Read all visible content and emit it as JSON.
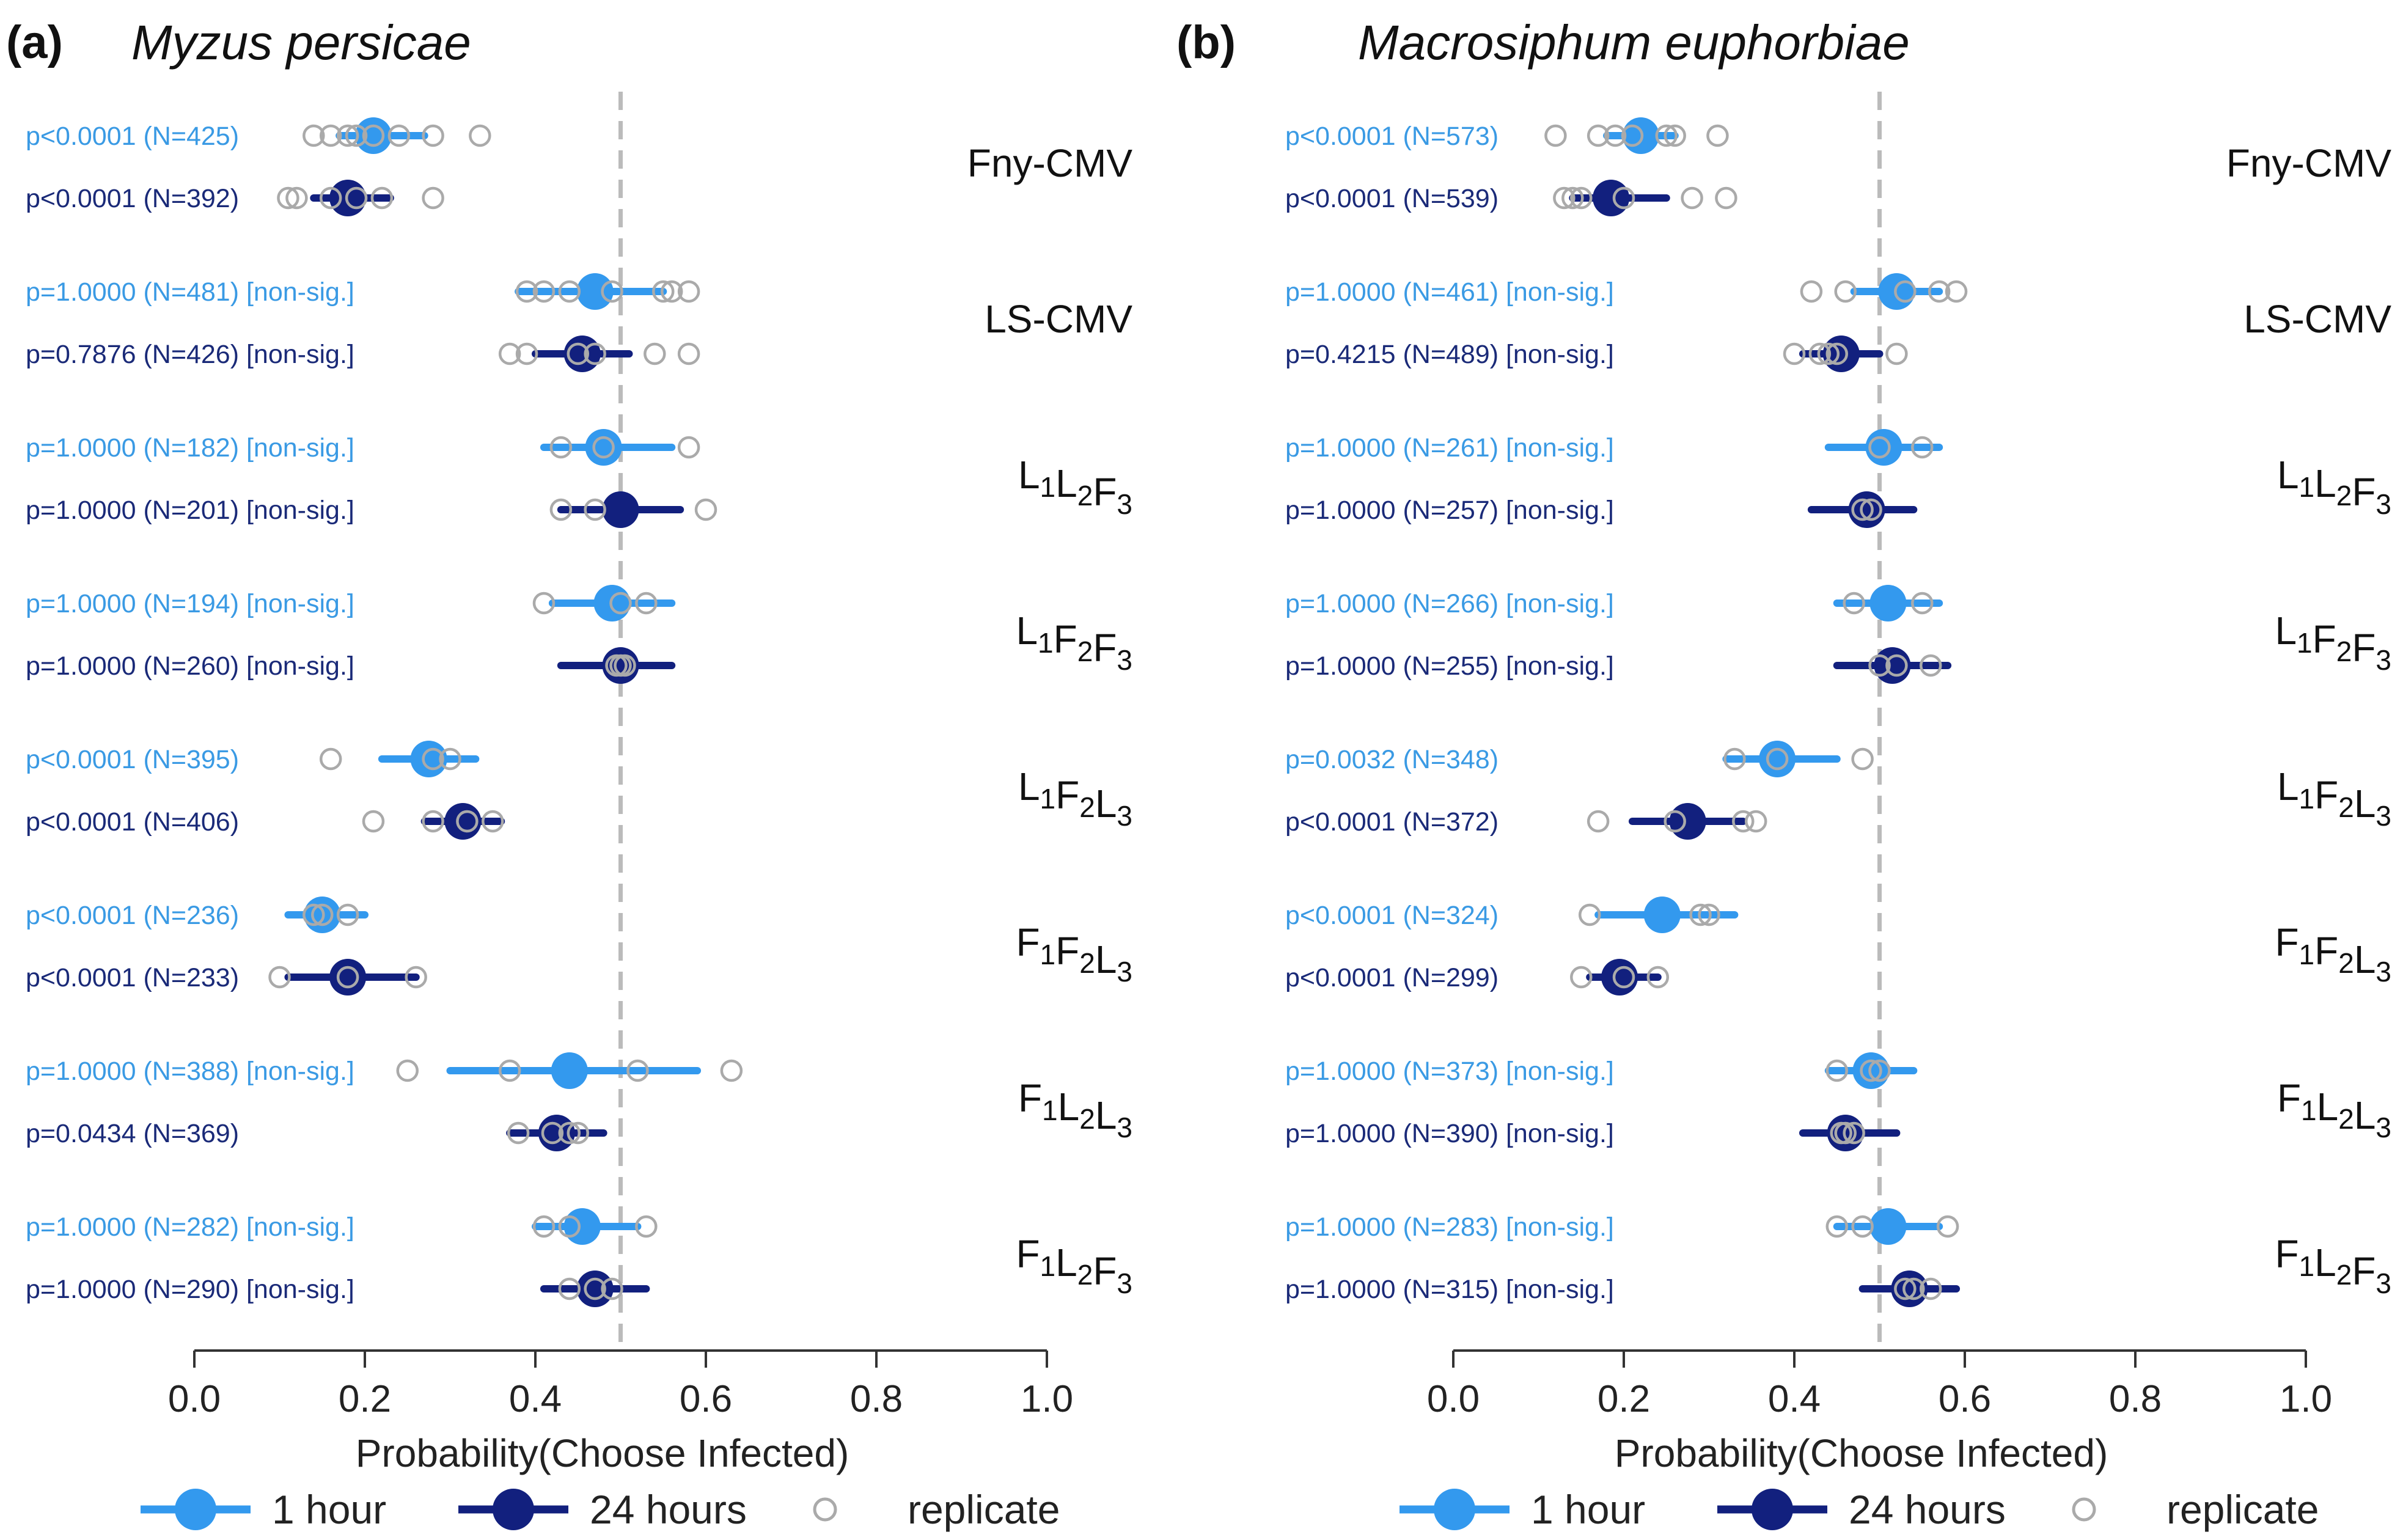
{
  "chart_data": [
    {
      "type": "scatter",
      "panel_label": "(a)",
      "title": "Myzus persicae",
      "xlabel": "Probability(Choose Infected)",
      "xlim": [
        0,
        1
      ],
      "xticks": [
        "0.0",
        "0.2",
        "0.4",
        "0.6",
        "0.8",
        "1.0"
      ],
      "reference_line": 0.5,
      "groups": [
        {
          "label": "Fny-CMV",
          "subs": [],
          "rows": [
            {
              "series": "1 hour",
              "text": "p<0.0001 (N=425)",
              "mean": 0.21,
              "lo": 0.17,
              "hi": 0.27,
              "replicates": [
                0.14,
                0.16,
                0.18,
                0.19,
                0.21,
                0.24,
                0.28,
                0.335
              ]
            },
            {
              "series": "24 hours",
              "text": "p<0.0001 (N=392)",
              "mean": 0.18,
              "lo": 0.14,
              "hi": 0.23,
              "replicates": [
                0.11,
                0.12,
                0.16,
                0.19,
                0.22,
                0.28
              ]
            }
          ]
        },
        {
          "label": "LS-CMV",
          "subs": [],
          "rows": [
            {
              "series": "1 hour",
              "text": "p=1.0000 (N=481) [non-sig.]",
              "mean": 0.47,
              "lo": 0.38,
              "hi": 0.55,
              "replicates": [
                0.39,
                0.41,
                0.44,
                0.49,
                0.55,
                0.56,
                0.58
              ]
            },
            {
              "series": "24 hours",
              "text": "p=0.7876 (N=426) [non-sig.]",
              "mean": 0.455,
              "lo": 0.4,
              "hi": 0.51,
              "replicates": [
                0.37,
                0.39,
                0.45,
                0.47,
                0.54,
                0.58
              ]
            }
          ]
        },
        {
          "label": "L1L2F3",
          "subs": [
            "1",
            "2",
            "3"
          ],
          "rows": [
            {
              "series": "1 hour",
              "text": "p=1.0000 (N=182) [non-sig.]",
              "mean": 0.48,
              "lo": 0.41,
              "hi": 0.56,
              "replicates": [
                0.43,
                0.48,
                0.58
              ]
            },
            {
              "series": "24 hours",
              "text": "p=1.0000 (N=201) [non-sig.]",
              "mean": 0.5,
              "lo": 0.43,
              "hi": 0.57,
              "replicates": [
                0.43,
                0.47,
                0.6
              ]
            }
          ]
        },
        {
          "label": "L1F2F3",
          "subs": [
            "1",
            "2",
            "3"
          ],
          "rows": [
            {
              "series": "1 hour",
              "text": "p=1.0000 (N=194) [non-sig.]",
              "mean": 0.49,
              "lo": 0.42,
              "hi": 0.56,
              "replicates": [
                0.41,
                0.5,
                0.53
              ]
            },
            {
              "series": "24 hours",
              "text": "p=1.0000 (N=260) [non-sig.]",
              "mean": 0.5,
              "lo": 0.43,
              "hi": 0.56,
              "replicates": [
                0.495,
                0.5,
                0.505
              ]
            }
          ]
        },
        {
          "label": "L1F2L3",
          "subs": [
            "1",
            "2",
            "3"
          ],
          "rows": [
            {
              "series": "1 hour",
              "text": "p<0.0001 (N=395)",
              "mean": 0.275,
              "lo": 0.22,
              "hi": 0.33,
              "replicates": [
                0.16,
                0.28,
                0.3
              ]
            },
            {
              "series": "24 hours",
              "text": "p<0.0001 (N=406)",
              "mean": 0.315,
              "lo": 0.27,
              "hi": 0.36,
              "replicates": [
                0.21,
                0.28,
                0.32,
                0.35
              ]
            }
          ]
        },
        {
          "label": "F1F2L3",
          "subs": [
            "1",
            "2",
            "3"
          ],
          "rows": [
            {
              "series": "1 hour",
              "text": "p<0.0001 (N=236)",
              "mean": 0.15,
              "lo": 0.11,
              "hi": 0.2,
              "replicates": [
                0.14,
                0.15,
                0.18
              ]
            },
            {
              "series": "24 hours",
              "text": "p<0.0001 (N=233)",
              "mean": 0.18,
              "lo": 0.11,
              "hi": 0.26,
              "replicates": [
                0.1,
                0.18,
                0.26
              ]
            }
          ]
        },
        {
          "label": "F1L2L3",
          "subs": [
            "1",
            "2",
            "3"
          ],
          "rows": [
            {
              "series": "1 hour",
              "text": "p=1.0000 (N=388) [non-sig.]",
              "mean": 0.44,
              "lo": 0.3,
              "hi": 0.59,
              "replicates": [
                0.25,
                0.37,
                0.52,
                0.63
              ]
            },
            {
              "series": "24 hours",
              "text": "p=0.0434 (N=369)",
              "mean": 0.425,
              "lo": 0.37,
              "hi": 0.48,
              "replicates": [
                0.38,
                0.42,
                0.44,
                0.45
              ]
            }
          ]
        },
        {
          "label": "F1L2F3",
          "subs": [
            "1",
            "2",
            "3"
          ],
          "rows": [
            {
              "series": "1 hour",
              "text": "p=1.0000 (N=282) [non-sig.]",
              "mean": 0.455,
              "lo": 0.4,
              "hi": 0.52,
              "replicates": [
                0.41,
                0.44,
                0.53
              ]
            },
            {
              "series": "24 hours",
              "text": "p=1.0000 (N=290) [non-sig.]",
              "mean": 0.47,
              "lo": 0.41,
              "hi": 0.53,
              "replicates": [
                0.44,
                0.47,
                0.49
              ]
            }
          ]
        }
      ]
    },
    {
      "type": "scatter",
      "panel_label": "(b)",
      "title": "Macrosiphum euphorbiae",
      "xlabel": "Probability(Choose Infected)",
      "xlim": [
        0,
        1
      ],
      "xticks": [
        "0.0",
        "0.2",
        "0.4",
        "0.6",
        "0.8",
        "1.0"
      ],
      "reference_line": 0.5,
      "groups": [
        {
          "label": "Fny-CMV",
          "subs": [],
          "rows": [
            {
              "series": "1 hour",
              "text": "p<0.0001 (N=573)",
              "mean": 0.22,
              "lo": 0.18,
              "hi": 0.26,
              "replicates": [
                0.12,
                0.17,
                0.19,
                0.21,
                0.25,
                0.26,
                0.31
              ]
            },
            {
              "series": "24 hours",
              "text": "p<0.0001 (N=539)",
              "mean": 0.185,
              "lo": 0.14,
              "hi": 0.25,
              "replicates": [
                0.13,
                0.14,
                0.15,
                0.2,
                0.28,
                0.32
              ]
            }
          ]
        },
        {
          "label": "LS-CMV",
          "subs": [],
          "rows": [
            {
              "series": "1 hour",
              "text": "p=1.0000 (N=461) [non-sig.]",
              "mean": 0.52,
              "lo": 0.47,
              "hi": 0.57,
              "replicates": [
                0.42,
                0.46,
                0.53,
                0.57,
                0.59
              ]
            },
            {
              "series": "24 hours",
              "text": "p=0.4215 (N=489) [non-sig.]",
              "mean": 0.455,
              "lo": 0.41,
              "hi": 0.5,
              "replicates": [
                0.4,
                0.43,
                0.44,
                0.45,
                0.52
              ]
            }
          ]
        },
        {
          "label": "L1L2F3",
          "subs": [
            "1",
            "2",
            "3"
          ],
          "rows": [
            {
              "series": "1 hour",
              "text": "p=1.0000 (N=261) [non-sig.]",
              "mean": 0.505,
              "lo": 0.44,
              "hi": 0.57,
              "replicates": [
                0.5,
                0.55
              ]
            },
            {
              "series": "24 hours",
              "text": "p=1.0000 (N=257) [non-sig.]",
              "mean": 0.485,
              "lo": 0.42,
              "hi": 0.54,
              "replicates": [
                0.48,
                0.49
              ]
            }
          ]
        },
        {
          "label": "L1F2F3",
          "subs": [
            "1",
            "2",
            "3"
          ],
          "rows": [
            {
              "series": "1 hour",
              "text": "p=1.0000 (N=266) [non-sig.]",
              "mean": 0.51,
              "lo": 0.45,
              "hi": 0.57,
              "replicates": [
                0.47,
                0.55
              ]
            },
            {
              "series": "24 hours",
              "text": "p=1.0000 (N=255) [non-sig.]",
              "mean": 0.515,
              "lo": 0.45,
              "hi": 0.58,
              "replicates": [
                0.5,
                0.52,
                0.56
              ]
            }
          ]
        },
        {
          "label": "L1F2L3",
          "subs": [
            "1",
            "2",
            "3"
          ],
          "rows": [
            {
              "series": "1 hour",
              "text": "p=0.0032 (N=348)",
              "mean": 0.38,
              "lo": 0.32,
              "hi": 0.45,
              "replicates": [
                0.33,
                0.38,
                0.48
              ]
            },
            {
              "series": "24 hours",
              "text": "p<0.0001 (N=372)",
              "mean": 0.275,
              "lo": 0.21,
              "hi": 0.34,
              "replicates": [
                0.17,
                0.26,
                0.34,
                0.355
              ]
            }
          ]
        },
        {
          "label": "F1F2L3",
          "subs": [
            "1",
            "2",
            "3"
          ],
          "rows": [
            {
              "series": "1 hour",
              "text": "p<0.0001 (N=324)",
              "mean": 0.245,
              "lo": 0.17,
              "hi": 0.33,
              "replicates": [
                0.16,
                0.29,
                0.3
              ]
            },
            {
              "series": "24 hours",
              "text": "p<0.0001 (N=299)",
              "mean": 0.195,
              "lo": 0.16,
              "hi": 0.24,
              "replicates": [
                0.15,
                0.2,
                0.24
              ]
            }
          ]
        },
        {
          "label": "F1L2L3",
          "subs": [
            "1",
            "2",
            "3"
          ],
          "rows": [
            {
              "series": "1 hour",
              "text": "p=1.0000 (N=373) [non-sig.]",
              "mean": 0.49,
              "lo": 0.44,
              "hi": 0.54,
              "replicates": [
                0.45,
                0.49,
                0.5
              ]
            },
            {
              "series": "24 hours",
              "text": "p=1.0000 (N=390) [non-sig.]",
              "mean": 0.46,
              "lo": 0.41,
              "hi": 0.52,
              "replicates": [
                0.455,
                0.46,
                0.47
              ]
            }
          ]
        },
        {
          "label": "F1L2F3",
          "subs": [
            "1",
            "2",
            "3"
          ],
          "rows": [
            {
              "series": "1 hour",
              "text": "p=1.0000 (N=283) [non-sig.]",
              "mean": 0.51,
              "lo": 0.45,
              "hi": 0.57,
              "replicates": [
                0.45,
                0.48,
                0.58
              ]
            },
            {
              "series": "24 hours",
              "text": "p=1.0000 (N=315) [non-sig.]",
              "mean": 0.535,
              "lo": 0.48,
              "hi": 0.59,
              "replicates": [
                0.53,
                0.54,
                0.56
              ]
            }
          ]
        }
      ]
    }
  ],
  "legend": {
    "items": [
      {
        "label": "1 hour",
        "kind": "point-line",
        "color": "#3399ee"
      },
      {
        "label": "24 hours",
        "kind": "point-line",
        "color": "#12207e"
      },
      {
        "label": "replicate",
        "kind": "open-circle",
        "color": "#aaaaaa"
      }
    ]
  },
  "colors": {
    "one_hour": "#3399ee",
    "one_hour_text": "#3a9ae4",
    "twenty_four_hours": "#12207e",
    "twenty_four_hours_text": "#1a2a78",
    "replicate": "#aaaaaa",
    "reference_line": "#bbbbbb",
    "axis": "#333333"
  }
}
